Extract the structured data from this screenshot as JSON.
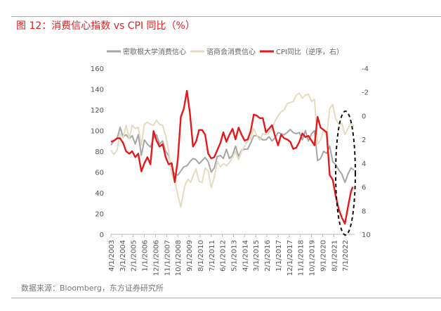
{
  "header": {
    "title": "图 12：消费信心指数 vs CPI 同比（%）"
  },
  "footer": {
    "source": "数据来源：Bloomberg，东方证券研究所"
  },
  "chart_data": {
    "type": "line",
    "title": "图 12：消费信心指数 vs CPI 同比（%）",
    "xlim": [
      2003.25,
      2023.3
    ],
    "ylim": [
      0,
      160
    ],
    "y2lim": [
      -4,
      10
    ],
    "y2_inverted": true,
    "yticks": [
      "0",
      "20",
      "40",
      "60",
      "80",
      "100",
      "120",
      "140",
      "160"
    ],
    "y2ticks": [
      "-4",
      "-2",
      "0",
      "2",
      "4",
      "6",
      "8",
      "10"
    ],
    "xtick_labels": [
      "4/1/2003",
      "3/1/2004",
      "2/1/2005",
      "1/1/2006",
      "12/1/2006",
      "11/1/2007",
      "10/1/2008",
      "9/1/2009",
      "8/1/2010",
      "7/1/2011",
      "6/1/2012",
      "5/1/2013",
      "4/1/2014",
      "3/1/2015",
      "2/1/2016",
      "1/1/2017",
      "12/1/2017",
      "11/1/2018",
      "10/1/2019",
      "9/1/2020",
      "8/1/2021",
      "7/1/2022"
    ],
    "legend_position": "top",
    "grid": false,
    "series": [
      {
        "name": "密歇根大学消费信心",
        "axis": "left",
        "color": "#a6a6a6",
        "points": [
          [
            2003.25,
            86
          ],
          [
            2003.5,
            90
          ],
          [
            2003.75,
            92
          ],
          [
            2004,
            103
          ],
          [
            2004.25,
            94
          ],
          [
            2004.5,
            96
          ],
          [
            2004.75,
            92
          ],
          [
            2005,
            95
          ],
          [
            2005.25,
            87
          ],
          [
            2005.5,
            96
          ],
          [
            2005.75,
            76
          ],
          [
            2006,
            91
          ],
          [
            2006.25,
            87
          ],
          [
            2006.5,
            84
          ],
          [
            2006.75,
            93
          ],
          [
            2007,
            96
          ],
          [
            2007.25,
            87
          ],
          [
            2007.5,
            90
          ],
          [
            2007.75,
            80
          ],
          [
            2008,
            76
          ],
          [
            2008.25,
            63
          ],
          [
            2008.5,
            58
          ],
          [
            2008.75,
            57
          ],
          [
            2009,
            61
          ],
          [
            2009.25,
            65
          ],
          [
            2009.5,
            66
          ],
          [
            2009.75,
            70
          ],
          [
            2010,
            73
          ],
          [
            2010.25,
            72
          ],
          [
            2010.5,
            68
          ],
          [
            2010.75,
            71
          ],
          [
            2011,
            74
          ],
          [
            2011.25,
            70
          ],
          [
            2011.5,
            60
          ],
          [
            2011.75,
            64
          ],
          [
            2012,
            75
          ],
          [
            2012.25,
            76
          ],
          [
            2012.5,
            73
          ],
          [
            2012.75,
            82
          ],
          [
            2013,
            73
          ],
          [
            2013.25,
            76
          ],
          [
            2013.5,
            85
          ],
          [
            2013.75,
            75
          ],
          [
            2014,
            81
          ],
          [
            2014.25,
            82
          ],
          [
            2014.5,
            82
          ],
          [
            2014.75,
            88
          ],
          [
            2015,
            95
          ],
          [
            2015.25,
            95
          ],
          [
            2015.5,
            93
          ],
          [
            2015.75,
            91
          ],
          [
            2016,
            91
          ],
          [
            2016.25,
            94
          ],
          [
            2016.5,
            90
          ],
          [
            2016.75,
            93
          ],
          [
            2017,
            98
          ],
          [
            2017.25,
            97
          ],
          [
            2017.5,
            96
          ],
          [
            2017.75,
            98
          ],
          [
            2018,
            101
          ],
          [
            2018.25,
            98
          ],
          [
            2018.5,
            97
          ],
          [
            2018.75,
            98
          ],
          [
            2019,
            91
          ],
          [
            2019.25,
            100
          ],
          [
            2019.5,
            90
          ],
          [
            2019.75,
            97
          ],
          [
            2020,
            100
          ],
          [
            2020.25,
            71
          ],
          [
            2020.5,
            73
          ],
          [
            2020.75,
            80
          ],
          [
            2021,
            78
          ],
          [
            2021.25,
            85
          ],
          [
            2021.5,
            70
          ],
          [
            2021.75,
            67
          ],
          [
            2022,
            62
          ],
          [
            2022.25,
            58
          ],
          [
            2022.5,
            50
          ],
          [
            2022.75,
            58
          ],
          [
            2023,
            64
          ],
          [
            2023.25,
            62
          ]
        ]
      },
      {
        "name": "谘商会消费信心",
        "axis": "left",
        "color": "#e3dcbf",
        "points": [
          [
            2003.25,
            81
          ],
          [
            2003.5,
            77
          ],
          [
            2003.75,
            81
          ],
          [
            2004,
            97
          ],
          [
            2004.25,
            93
          ],
          [
            2004.5,
            105
          ],
          [
            2004.75,
            92
          ],
          [
            2005,
            105
          ],
          [
            2005.25,
            102
          ],
          [
            2005.5,
            103
          ],
          [
            2005.75,
            86
          ],
          [
            2006,
            106
          ],
          [
            2006.25,
            108
          ],
          [
            2006.5,
            106
          ],
          [
            2006.75,
            105
          ],
          [
            2007,
            110
          ],
          [
            2007.25,
            106
          ],
          [
            2007.5,
            105
          ],
          [
            2007.75,
            95
          ],
          [
            2008,
            80
          ],
          [
            2008.25,
            58
          ],
          [
            2008.5,
            51
          ],
          [
            2008.75,
            38
          ],
          [
            2009,
            26
          ],
          [
            2009.2,
            40
          ],
          [
            2009.4,
            49
          ],
          [
            2009.6,
            53
          ],
          [
            2009.8,
            50
          ],
          [
            2010,
            56
          ],
          [
            2010.25,
            63
          ],
          [
            2010.5,
            51
          ],
          [
            2010.75,
            50
          ],
          [
            2011,
            64
          ],
          [
            2011.25,
            61
          ],
          [
            2011.5,
            45
          ],
          [
            2011.75,
            55
          ],
          [
            2012,
            70
          ],
          [
            2012.25,
            65
          ],
          [
            2012.5,
            68
          ],
          [
            2012.75,
            66
          ],
          [
            2013,
            69
          ],
          [
            2013.25,
            74
          ],
          [
            2013.5,
            80
          ],
          [
            2013.75,
            72
          ],
          [
            2014,
            80
          ],
          [
            2014.25,
            85
          ],
          [
            2014.5,
            90
          ],
          [
            2014.75,
            93
          ],
          [
            2015,
            102
          ],
          [
            2015.25,
            95
          ],
          [
            2015.5,
            91
          ],
          [
            2015.75,
            97
          ],
          [
            2016,
            96
          ],
          [
            2016.25,
            98
          ],
          [
            2016.5,
            101
          ],
          [
            2016.75,
            109
          ],
          [
            2017,
            114
          ],
          [
            2017.25,
            118
          ],
          [
            2017.5,
            120
          ],
          [
            2017.75,
            126
          ],
          [
            2018,
            127
          ],
          [
            2018.25,
            128
          ],
          [
            2018.5,
            134
          ],
          [
            2018.75,
            136
          ],
          [
            2019,
            131
          ],
          [
            2019.25,
            134
          ],
          [
            2019.5,
            135
          ],
          [
            2019.75,
            128
          ],
          [
            2020,
            130
          ],
          [
            2020.25,
            87
          ],
          [
            2020.5,
            91
          ],
          [
            2020.75,
            100
          ],
          [
            2021,
            95
          ],
          [
            2021.25,
            121
          ],
          [
            2021.5,
            125
          ],
          [
            2021.75,
            111
          ],
          [
            2022,
            106
          ],
          [
            2022.25,
            107
          ],
          [
            2022.5,
            96
          ],
          [
            2022.75,
            102
          ],
          [
            2023,
            107
          ],
          [
            2023.25,
            104
          ]
        ]
      },
      {
        "name": "CPI同比（逆序，右）",
        "axis": "right",
        "color": "#e31a1c",
        "points": [
          [
            2003.25,
            2.2
          ],
          [
            2003.5,
            2.1
          ],
          [
            2003.75,
            1.9
          ],
          [
            2004,
            1.9
          ],
          [
            2004.25,
            2.3
          ],
          [
            2004.5,
            3.0
          ],
          [
            2004.75,
            3.2
          ],
          [
            2005,
            3.0
          ],
          [
            2005.25,
            3.5
          ],
          [
            2005.5,
            3.2
          ],
          [
            2005.75,
            4.7
          ],
          [
            2006,
            4.0
          ],
          [
            2006.25,
            3.5
          ],
          [
            2006.5,
            4.1
          ],
          [
            2006.75,
            1.3
          ],
          [
            2007,
            2.1
          ],
          [
            2007.25,
            2.6
          ],
          [
            2007.5,
            2.4
          ],
          [
            2007.75,
            3.5
          ],
          [
            2008,
            4.1
          ],
          [
            2008.25,
            4.0
          ],
          [
            2008.5,
            5.6
          ],
          [
            2008.75,
            3.7
          ],
          [
            2009,
            0.1
          ],
          [
            2009.25,
            -0.6
          ],
          [
            2009.5,
            -2.1
          ],
          [
            2009.75,
            -0.2
          ],
          [
            2010,
            2.6
          ],
          [
            2010.25,
            2.2
          ],
          [
            2010.5,
            1.2
          ],
          [
            2010.75,
            1.2
          ],
          [
            2011,
            1.6
          ],
          [
            2011.25,
            3.2
          ],
          [
            2011.5,
            3.6
          ],
          [
            2011.75,
            3.5
          ],
          [
            2012,
            2.9
          ],
          [
            2012.25,
            2.3
          ],
          [
            2012.5,
            1.4
          ],
          [
            2012.75,
            2.2
          ],
          [
            2013,
            1.6
          ],
          [
            2013.25,
            1.1
          ],
          [
            2013.5,
            2.0
          ],
          [
            2013.75,
            1.0
          ],
          [
            2014,
            1.6
          ],
          [
            2014.25,
            2.1
          ],
          [
            2014.5,
            2.0
          ],
          [
            2014.75,
            1.3
          ],
          [
            2015,
            -0.1
          ],
          [
            2015.25,
            0.0
          ],
          [
            2015.5,
            0.2
          ],
          [
            2015.75,
            0.2
          ],
          [
            2016,
            1.4
          ],
          [
            2016.25,
            1.1
          ],
          [
            2016.5,
            0.8
          ],
          [
            2016.75,
            1.7
          ],
          [
            2017,
            2.5
          ],
          [
            2017.25,
            1.6
          ],
          [
            2017.5,
            1.9
          ],
          [
            2017.75,
            2.0
          ],
          [
            2018,
            2.2
          ],
          [
            2018.25,
            2.8
          ],
          [
            2018.5,
            2.7
          ],
          [
            2018.75,
            2.2
          ],
          [
            2019,
            1.5
          ],
          [
            2019.25,
            1.8
          ],
          [
            2019.5,
            1.7
          ],
          [
            2019.75,
            2.1
          ],
          [
            2020,
            2.5
          ],
          [
            2020.25,
            0.1
          ],
          [
            2020.5,
            1.0
          ],
          [
            2020.75,
            1.2
          ],
          [
            2021,
            1.4
          ],
          [
            2021.25,
            5.0
          ],
          [
            2021.5,
            5.4
          ],
          [
            2021.75,
            6.8
          ],
          [
            2022,
            7.9
          ],
          [
            2022.25,
            8.6
          ],
          [
            2022.5,
            9.1
          ],
          [
            2022.75,
            7.7
          ],
          [
            2023,
            6.4
          ],
          [
            2023.15,
            6.0
          ]
        ]
      }
    ],
    "annotation": "dashed ellipse highlighting 2021–2023"
  }
}
